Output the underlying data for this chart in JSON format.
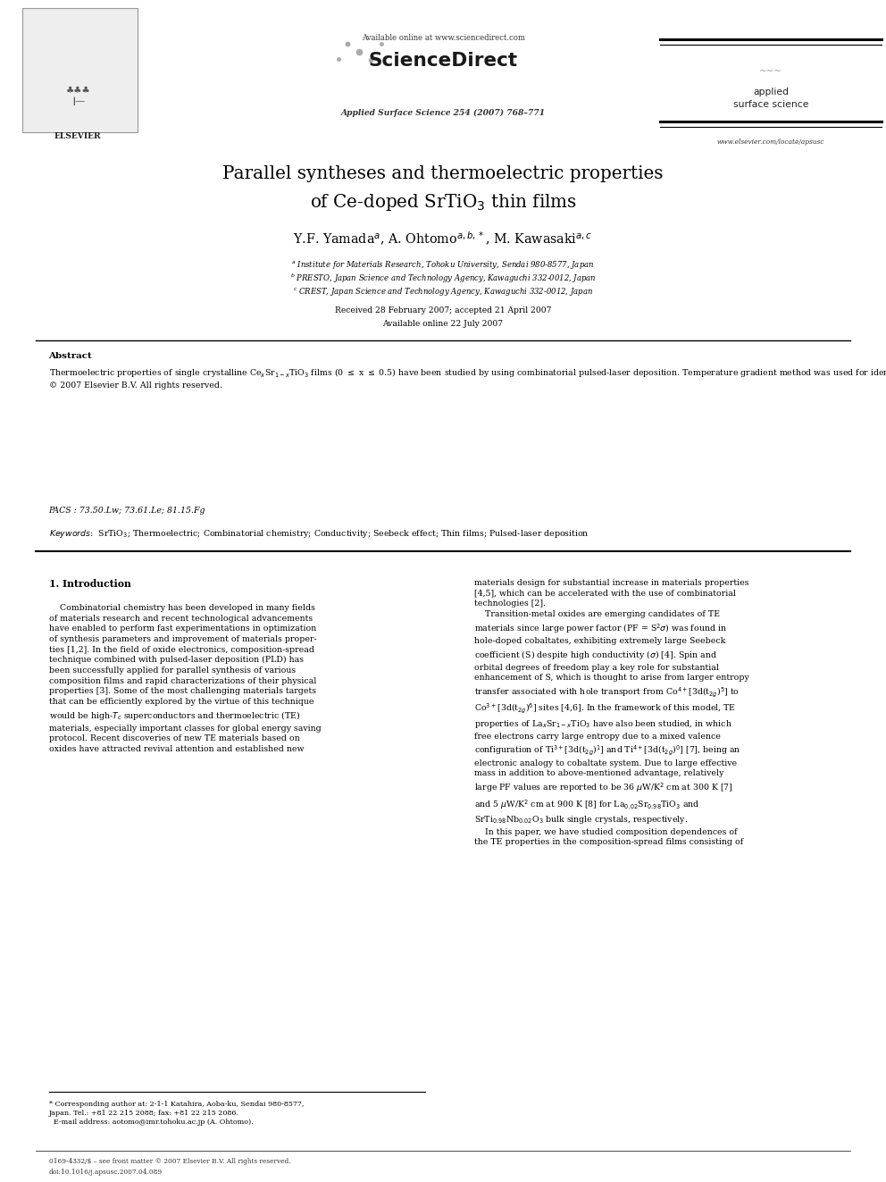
{
  "bg_color": "#ffffff",
  "page_width": 9.92,
  "page_height": 13.23,
  "available_online": "Available online at www.sciencedirect.com",
  "sciencedirect": "ScienceDirect",
  "journal_line": "Applied Surface Science 254 (2007) 768–771",
  "elsevier": "ELSEVIER",
  "applied_surface_science": "applied\nsurface science",
  "website": "www.elsevier.com/locate/apsusc",
  "title_line1": "Parallel syntheses and thermoelectric properties",
  "title_line2": "of Ce-doped SrTiO$_3$ thin films",
  "authors": "Y.F. Yamada$^a$, A. Ohtomo$^{a,b,*}$, M. Kawasaki$^{a,c}$",
  "affil_a": "$^a$ Institute for Materials Research, Tohoku University, Sendai 980-8577, Japan",
  "affil_b": "$^b$ PRESTO, Japan Science and Technology Agency, Kawaguchi 332-0012, Japan",
  "affil_c": "$^c$ CREST, Japan Science and Technology Agency, Kawaguchi 332-0012, Japan",
  "dates": "Received 28 February 2007; accepted 21 April 2007",
  "available": "Available online 22 July 2007",
  "abstract_title": "Abstract",
  "pacs": "PACS : 73.50.Lw; 73.61.Le; 81.15.Fg",
  "section1_title": "1. Introduction",
  "footer_line1": "0169-4332/$ – see front matter © 2007 Elsevier B.V. All rights reserved.",
  "footer_line2": "doi:10.1016/j.apsusc.2007.04.089"
}
